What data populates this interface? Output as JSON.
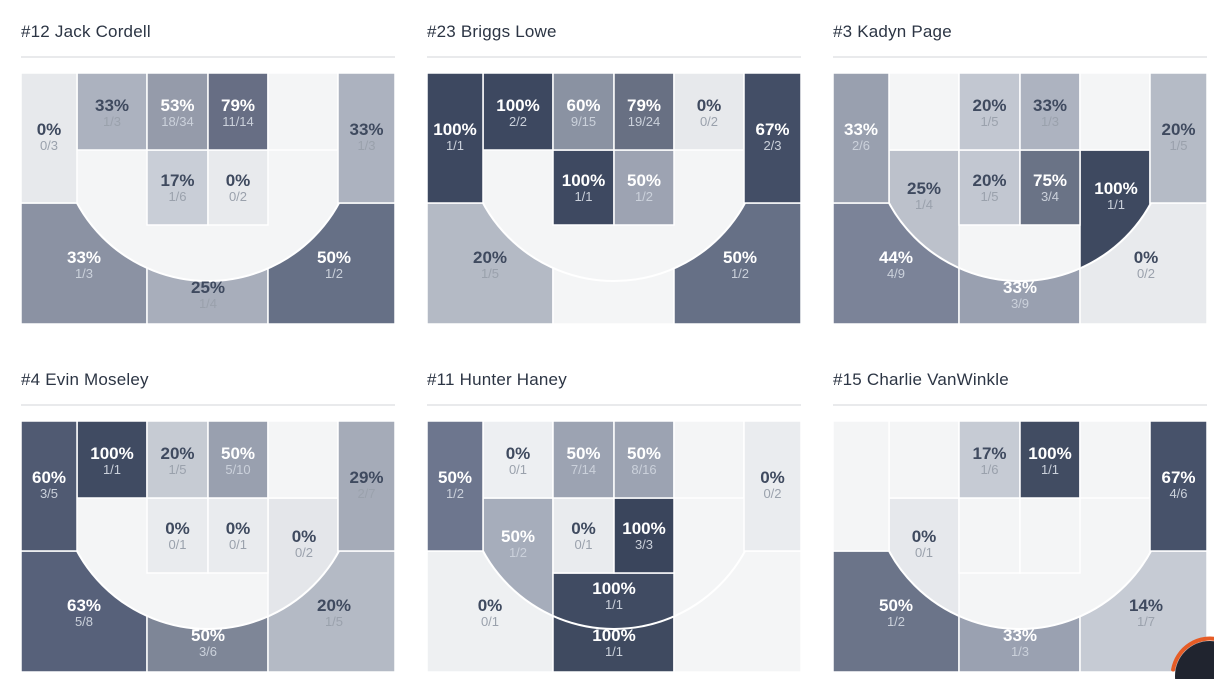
{
  "palette": {
    "page_bg": "#ffffff",
    "title_color": "#2c3544",
    "divider": "#e9eaec",
    "empty_zone": "#f4f5f6",
    "arc_fill": "#f4f5f6",
    "arc_line": "#ffffff",
    "cell_gap": "#ffffff",
    "pct_light": "#ffffff",
    "frac_light": "#cbd1db",
    "pct_dark": "#3f4a5f",
    "frac_dark": "#9aa1ac"
  },
  "fab": {
    "name": "floating action button",
    "circle_color": "#20242f",
    "accent_color": "#e65c26"
  },
  "chart_data": [
    {
      "type": "zone_heatmap",
      "title": "#12 Jack Cordell",
      "zones": {
        "lc3": {
          "pct": "0%",
          "shots": "0/3",
          "fill": "#e7e9ec",
          "text": "dark"
        },
        "r1": {
          "pct": "33%",
          "shots": "1/3",
          "fill": "#acb2bf",
          "text": "dark"
        },
        "r2": {
          "pct": "53%",
          "shots": "18/34",
          "fill": "#959baa",
          "text": "light"
        },
        "r3": {
          "pct": "79%",
          "shots": "11/14",
          "fill": "#676e84",
          "text": "light"
        },
        "r4": null,
        "rc3": {
          "pct": "33%",
          "shots": "1/3",
          "fill": "#acb2bf",
          "text": "dark"
        },
        "ml": null,
        "mc1": {
          "pct": "17%",
          "shots": "1/6",
          "fill": "#c9ced7",
          "text": "dark"
        },
        "mc2": {
          "pct": "0%",
          "shots": "0/2",
          "fill": "#e8eaed",
          "text": "dark"
        },
        "mr": null,
        "ft": null,
        "lw3": {
          "pct": "33%",
          "shots": "1/3",
          "fill": "#8b92a3",
          "text": "light"
        },
        "tk3": {
          "pct": "25%",
          "shots": "1/4",
          "fill": "#a8aebb",
          "text": "dark"
        },
        "rw3": {
          "pct": "50%",
          "shots": "1/2",
          "fill": "#667086",
          "text": "light"
        }
      }
    },
    {
      "type": "zone_heatmap",
      "title": "#23 Briggs Lowe",
      "zones": {
        "lc3": {
          "pct": "100%",
          "shots": "1/1",
          "fill": "#3d4860",
          "text": "light"
        },
        "r1": {
          "pct": "100%",
          "shots": "2/2",
          "fill": "#3d4860",
          "text": "light"
        },
        "r2": {
          "pct": "60%",
          "shots": "9/15",
          "fill": "#8a92a2",
          "text": "light"
        },
        "r3": {
          "pct": "79%",
          "shots": "19/24",
          "fill": "#687083",
          "text": "light"
        },
        "r4": {
          "pct": "0%",
          "shots": "0/2",
          "fill": "#e7e9ec",
          "text": "dark"
        },
        "rc3": {
          "pct": "67%",
          "shots": "2/3",
          "fill": "#434e66",
          "text": "light"
        },
        "ml": null,
        "mc1": {
          "pct": "100%",
          "shots": "1/1",
          "fill": "#3e4961",
          "text": "light"
        },
        "mc2": {
          "pct": "50%",
          "shots": "1/2",
          "fill": "#9da3b2",
          "text": "light"
        },
        "mr": null,
        "ft": null,
        "lw3": {
          "pct": "20%",
          "shots": "1/5",
          "fill": "#b4bac5",
          "text": "dark"
        },
        "tk3": null,
        "rw3": {
          "pct": "50%",
          "shots": "1/2",
          "fill": "#667086",
          "text": "light"
        }
      }
    },
    {
      "type": "zone_heatmap",
      "title": "#3 Kadyn Page",
      "zones": {
        "lc3": {
          "pct": "33%",
          "shots": "2/6",
          "fill": "#99a0af",
          "text": "light"
        },
        "r1": null,
        "r2": {
          "pct": "20%",
          "shots": "1/5",
          "fill": "#c2c7d1",
          "text": "dark"
        },
        "r3": {
          "pct": "33%",
          "shots": "1/3",
          "fill": "#adb3c0",
          "text": "dark"
        },
        "r4": null,
        "rc3": {
          "pct": "20%",
          "shots": "1/5",
          "fill": "#b5bbc6",
          "text": "dark"
        },
        "ml": {
          "pct": "25%",
          "shots": "1/4",
          "fill": "#bcc1cb",
          "text": "dark"
        },
        "mc1": {
          "pct": "20%",
          "shots": "1/5",
          "fill": "#c2c7d1",
          "text": "dark"
        },
        "mc2": {
          "pct": "75%",
          "shots": "3/4",
          "fill": "#6a7386",
          "text": "light"
        },
        "mr": {
          "pct": "100%",
          "shots": "1/1",
          "fill": "#3e4960",
          "text": "light"
        },
        "ft": null,
        "lw3": {
          "pct": "44%",
          "shots": "4/9",
          "fill": "#7b8398",
          "text": "light"
        },
        "tk3": {
          "pct": "33%",
          "shots": "3/9",
          "fill": "#99a0b0",
          "text": "light"
        },
        "rw3": {
          "pct": "0%",
          "shots": "0/2",
          "fill": "#e8eaed",
          "text": "dark"
        }
      }
    },
    {
      "type": "zone_heatmap",
      "title": "#4 Evin Moseley",
      "zones": {
        "lc3": {
          "pct": "60%",
          "shots": "3/5",
          "fill": "#505a72",
          "text": "light"
        },
        "r1": {
          "pct": "100%",
          "shots": "1/1",
          "fill": "#404b62",
          "text": "light"
        },
        "r2": {
          "pct": "20%",
          "shots": "1/5",
          "fill": "#c6cbd3",
          "text": "dark"
        },
        "r3": {
          "pct": "50%",
          "shots": "5/10",
          "fill": "#99a0af",
          "text": "light"
        },
        "r4": null,
        "rc3": {
          "pct": "29%",
          "shots": "2/7",
          "fill": "#a5abb8",
          "text": "dark"
        },
        "ml": null,
        "mc1": {
          "pct": "0%",
          "shots": "0/1",
          "fill": "#e9ebee",
          "text": "dark"
        },
        "mc2": {
          "pct": "0%",
          "shots": "0/1",
          "fill": "#e9ebee",
          "text": "dark"
        },
        "mr": {
          "pct": "0%",
          "shots": "0/2",
          "fill": "#e4e6ea",
          "text": "dark"
        },
        "ft": null,
        "lw3": {
          "pct": "63%",
          "shots": "5/8",
          "fill": "#57617a",
          "text": "light"
        },
        "tk3": {
          "pct": "50%",
          "shots": "3/6",
          "fill": "#7e8697",
          "text": "light"
        },
        "rw3": {
          "pct": "20%",
          "shots": "1/5",
          "fill": "#b4bac5",
          "text": "dark"
        }
      }
    },
    {
      "type": "zone_heatmap",
      "title": "#11 Hunter Haney",
      "zones": {
        "lc3": {
          "pct": "50%",
          "shots": "1/2",
          "fill": "#6d768e",
          "text": "light"
        },
        "r1": {
          "pct": "0%",
          "shots": "0/1",
          "fill": "#edeff2",
          "text": "dark"
        },
        "r2": {
          "pct": "50%",
          "shots": "7/14",
          "fill": "#9ca3b2",
          "text": "light"
        },
        "r3": {
          "pct": "50%",
          "shots": "8/16",
          "fill": "#9ca3b2",
          "text": "light"
        },
        "r4": null,
        "rc3": {
          "pct": "0%",
          "shots": "0/2",
          "fill": "#eaecef",
          "text": "dark"
        },
        "ml": {
          "pct": "50%",
          "shots": "1/2",
          "fill": "#a6adbb",
          "text": "light"
        },
        "mc1": {
          "pct": "0%",
          "shots": "0/1",
          "fill": "#e9ebee",
          "text": "dark"
        },
        "mc2": {
          "pct": "100%",
          "shots": "3/3",
          "fill": "#3a455c",
          "text": "light"
        },
        "mr": null,
        "ft": {
          "pct": "100%",
          "shots": "1/1",
          "fill": "#404b62",
          "text": "light"
        },
        "lw3": {
          "pct": "0%",
          "shots": "0/1",
          "fill": "#eef0f2",
          "text": "dark"
        },
        "tk3": {
          "pct": "100%",
          "shots": "1/1",
          "fill": "#3f4a60",
          "text": "light"
        },
        "rw3": null
      }
    },
    {
      "type": "zone_heatmap",
      "title": "#15 Charlie VanWinkle",
      "zones": {
        "lc3": null,
        "r1": null,
        "r2": {
          "pct": "17%",
          "shots": "1/6",
          "fill": "#c6cbd4",
          "text": "dark"
        },
        "r3": {
          "pct": "100%",
          "shots": "1/1",
          "fill": "#414c62",
          "text": "light"
        },
        "r4": null,
        "rc3": {
          "pct": "67%",
          "shots": "4/6",
          "fill": "#47526a",
          "text": "light"
        },
        "ml": {
          "pct": "0%",
          "shots": "0/1",
          "fill": "#e6e8ec",
          "text": "dark"
        },
        "mc1": null,
        "mc2": null,
        "mr": null,
        "ft": null,
        "lw3": {
          "pct": "50%",
          "shots": "1/2",
          "fill": "#6b7489",
          "text": "light"
        },
        "tk3": {
          "pct": "33%",
          "shots": "1/3",
          "fill": "#9aa1b1",
          "text": "light"
        },
        "rw3": {
          "pct": "14%",
          "shots": "1/7",
          "fill": "#c6cbd4",
          "text": "dark"
        }
      }
    }
  ]
}
